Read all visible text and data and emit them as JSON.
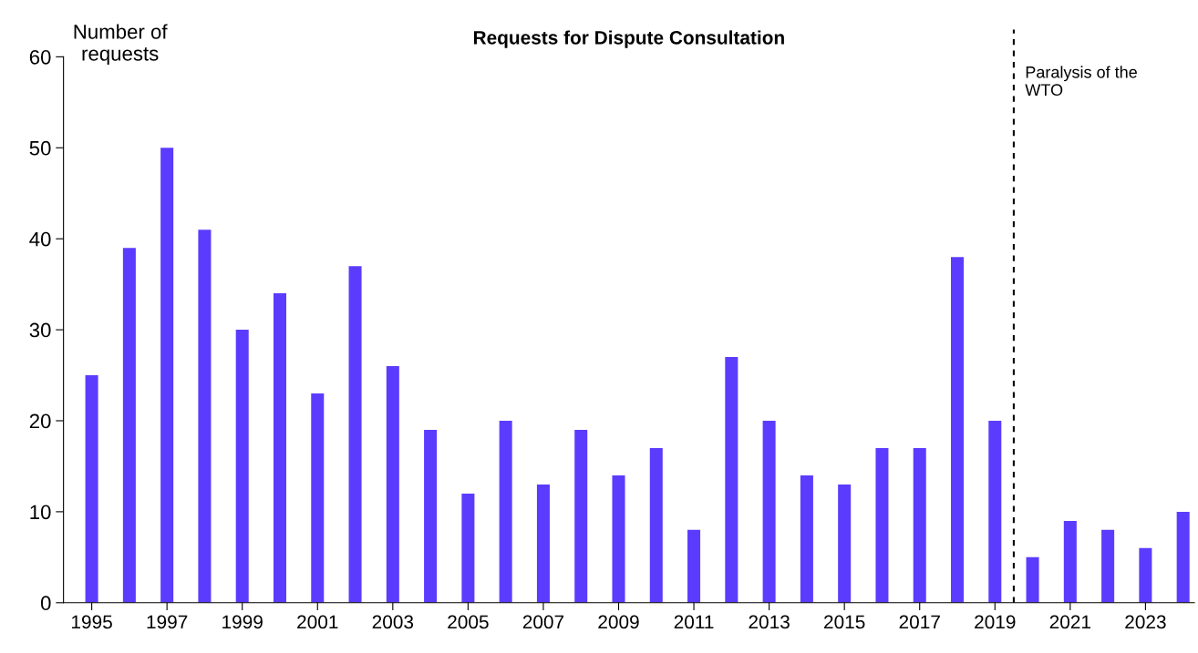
{
  "chart_data": {
    "type": "bar",
    "title": "Requests for Dispute Consultation",
    "ylabel": "Number of\nrequests",
    "x": [
      1995,
      1996,
      1997,
      1998,
      1999,
      2000,
      2001,
      2002,
      2003,
      2004,
      2005,
      2006,
      2007,
      2008,
      2009,
      2010,
      2011,
      2012,
      2013,
      2014,
      2015,
      2016,
      2017,
      2018,
      2019,
      2020,
      2021,
      2022,
      2023,
      2024
    ],
    "values": [
      25,
      39,
      50,
      41,
      30,
      34,
      23,
      37,
      26,
      19,
      12,
      20,
      13,
      19,
      14,
      17,
      8,
      27,
      20,
      14,
      13,
      17,
      17,
      38,
      20,
      5,
      9,
      8,
      6,
      10
    ],
    "color": "#5b3cff",
    "xlim": [
      1994.25,
      2024.3
    ],
    "xticks": [
      1995,
      1997,
      1999,
      2001,
      2003,
      2005,
      2007,
      2009,
      2011,
      2013,
      2015,
      2017,
      2019,
      2021,
      2023
    ],
    "ylim": [
      0,
      60
    ],
    "yticks": [
      0,
      10,
      20,
      30,
      40,
      50,
      60
    ],
    "ref_lines": [
      {
        "axis": "x",
        "value": 2019.5,
        "label": "Paralysis of the\nWTO",
        "color": "#000000",
        "line_style": "dashed"
      }
    ],
    "grid": false,
    "legend": false
  }
}
